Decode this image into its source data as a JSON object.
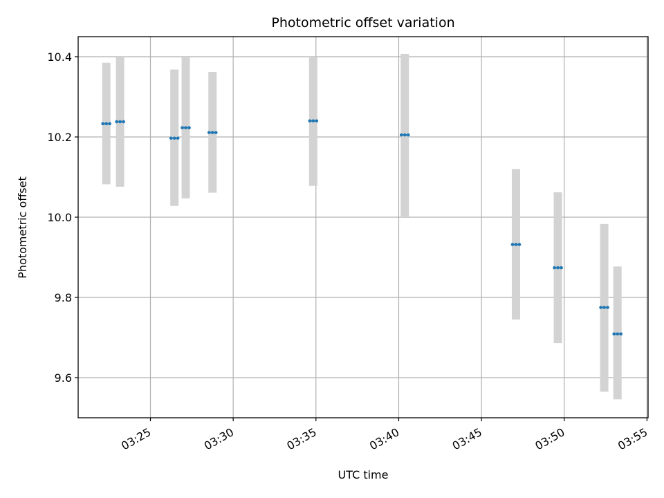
{
  "chart_data": {
    "type": "scatter",
    "title": "Photometric offset variation",
    "xlabel": "UTC time",
    "ylabel": "Photometric offset",
    "x_ticks": [
      "03:25",
      "03:30",
      "03:35",
      "03:40",
      "03:45",
      "03:50",
      "03:55"
    ],
    "y_ticks": [
      "9.6",
      "9.8",
      "10.0",
      "10.2",
      "10.4"
    ],
    "xlim": [
      "03:20:38",
      "03:55:04"
    ],
    "ylim": [
      9.5,
      10.45
    ],
    "grid": true,
    "colors": {
      "points": "#1f77b4",
      "errorbars": "#d3d3d3",
      "grid": "#b0b0b0"
    },
    "points": [
      {
        "time": "03:22:20",
        "value": 10.233,
        "err_low": 10.082,
        "err_high": 10.385
      },
      {
        "time": "03:23:10",
        "value": 10.238,
        "err_low": 10.076,
        "err_high": 10.4
      },
      {
        "time": "03:26:27",
        "value": 10.197,
        "err_low": 10.028,
        "err_high": 10.368
      },
      {
        "time": "03:27:08",
        "value": 10.223,
        "err_low": 10.047,
        "err_high": 10.4
      },
      {
        "time": "03:28:45",
        "value": 10.211,
        "err_low": 10.061,
        "err_high": 10.362
      },
      {
        "time": "03:34:50",
        "value": 10.24,
        "err_low": 10.078,
        "err_high": 10.4
      },
      {
        "time": "03:40:22",
        "value": 10.205,
        "err_low": 10.0,
        "err_high": 10.407
      },
      {
        "time": "03:47:05",
        "value": 9.932,
        "err_low": 9.745,
        "err_high": 10.12
      },
      {
        "time": "03:49:37",
        "value": 9.874,
        "err_low": 9.686,
        "err_high": 10.062
      },
      {
        "time": "03:52:25",
        "value": 9.775,
        "err_low": 9.565,
        "err_high": 9.983
      },
      {
        "time": "03:53:13",
        "value": 9.709,
        "err_low": 9.546,
        "err_high": 9.877
      }
    ]
  }
}
